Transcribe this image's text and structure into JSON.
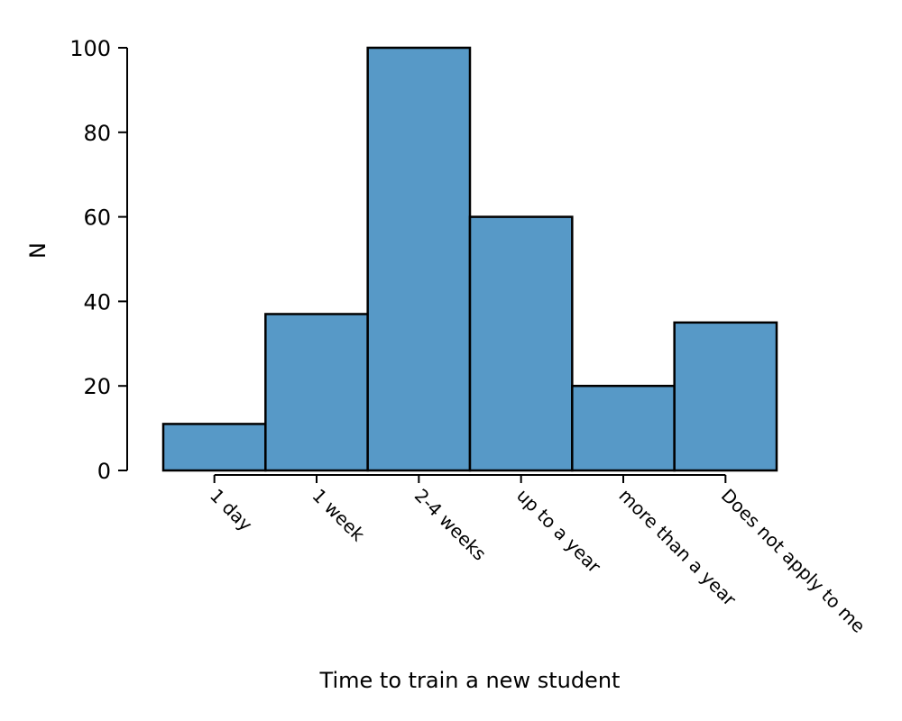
{
  "chart_data": {
    "type": "bar",
    "categories": [
      "1 day",
      "1 week",
      "2-4 weeks",
      "up to a year",
      "more than a year",
      "Does not apply to me"
    ],
    "values": [
      11,
      37,
      100,
      60,
      20,
      35
    ],
    "xlabel": "Time to train a new student",
    "ylabel": "N",
    "ylim": [
      0,
      100
    ],
    "yticks": [
      0,
      20,
      40,
      60,
      80,
      100
    ],
    "grid": false,
    "bar_color": "#5799c7",
    "edge_color": "#000000"
  }
}
